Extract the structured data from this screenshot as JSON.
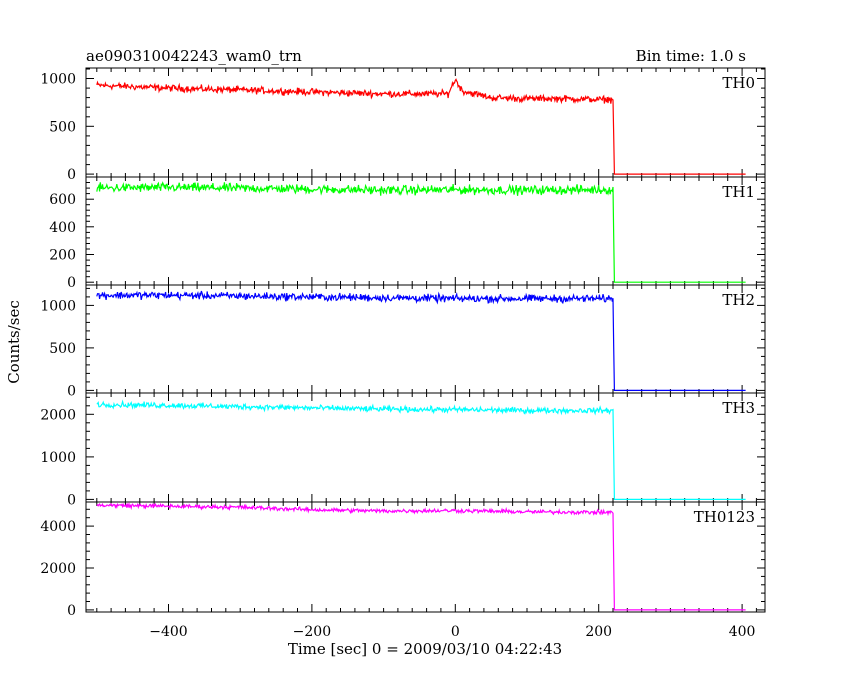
{
  "header": {
    "title": "ae090310042243_wam0_trn",
    "bin_time": "Bin time: 1.0 s"
  },
  "chart_data": {
    "type": "line",
    "title": "ae090310042243_wam0_trn",
    "subtitle": "Bin time: 1.0 s",
    "xlabel": "Time [sec] 0 = 2009/03/10 04:22:43",
    "ylabel": "Counts/sec",
    "xlim": [
      -515,
      432
    ],
    "xticks": [
      -400,
      -200,
      0,
      200,
      400
    ],
    "grid": false,
    "panels": [
      {
        "name": "TH0",
        "color": "#ff0000",
        "ylim": [
          -30,
          1110
        ],
        "yticks": [
          0,
          500,
          1000
        ],
        "points": [
          [
            -500,
            930
          ],
          [
            -400,
            900
          ],
          [
            -300,
            880
          ],
          [
            -200,
            860
          ],
          [
            -100,
            840
          ],
          [
            -10,
            840
          ],
          [
            0,
            990
          ],
          [
            10,
            870
          ],
          [
            50,
            800
          ],
          [
            100,
            790
          ],
          [
            150,
            790
          ],
          [
            200,
            780
          ],
          [
            220,
            780
          ],
          [
            222,
            0
          ],
          [
            405,
            0
          ]
        ],
        "noise": 30
      },
      {
        "name": "TH1",
        "color": "#00ff00",
        "ylim": [
          -20,
          760
        ],
        "yticks": [
          0,
          200,
          400,
          600
        ],
        "points": [
          [
            -500,
            680
          ],
          [
            -400,
            685
          ],
          [
            -300,
            680
          ],
          [
            -200,
            672
          ],
          [
            -100,
            665
          ],
          [
            0,
            668
          ],
          [
            100,
            665
          ],
          [
            200,
            668
          ],
          [
            220,
            668
          ],
          [
            222,
            0
          ],
          [
            405,
            0
          ]
        ],
        "noise": 28
      },
      {
        "name": "TH2",
        "color": "#0000ff",
        "ylim": [
          -30,
          1240
        ],
        "yticks": [
          0,
          500,
          1000
        ],
        "points": [
          [
            -500,
            1120
          ],
          [
            -400,
            1120
          ],
          [
            -300,
            1110
          ],
          [
            -200,
            1100
          ],
          [
            -100,
            1090
          ],
          [
            0,
            1080
          ],
          [
            100,
            1080
          ],
          [
            200,
            1080
          ],
          [
            220,
            1080
          ],
          [
            222,
            0
          ],
          [
            405,
            0
          ]
        ],
        "noise": 38
      },
      {
        "name": "TH3",
        "color": "#00ffff",
        "ylim": [
          -60,
          2500
        ],
        "yticks": [
          0,
          1000,
          2000
        ],
        "points": [
          [
            -500,
            2230
          ],
          [
            -400,
            2210
          ],
          [
            -300,
            2180
          ],
          [
            -200,
            2150
          ],
          [
            -100,
            2120
          ],
          [
            0,
            2110
          ],
          [
            100,
            2090
          ],
          [
            200,
            2090
          ],
          [
            220,
            2090
          ],
          [
            222,
            0
          ],
          [
            405,
            0
          ]
        ],
        "noise": 55
      },
      {
        "name": "TH0123",
        "color": "#ff00ff",
        "ylim": [
          -100,
          5150
        ],
        "yticks": [
          0,
          2000,
          4000
        ],
        "points": [
          [
            -500,
            5000
          ],
          [
            -400,
            4950
          ],
          [
            -300,
            4900
          ],
          [
            -200,
            4780
          ],
          [
            -100,
            4720
          ],
          [
            0,
            4740
          ],
          [
            100,
            4680
          ],
          [
            200,
            4660
          ],
          [
            220,
            4660
          ],
          [
            222,
            0
          ],
          [
            405,
            0
          ]
        ],
        "noise": 80
      }
    ]
  }
}
